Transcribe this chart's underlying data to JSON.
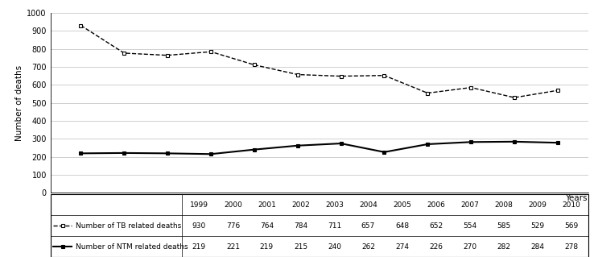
{
  "years": [
    1999,
    2000,
    2001,
    2002,
    2003,
    2004,
    2005,
    2006,
    2007,
    2008,
    2009,
    2010
  ],
  "tb_deaths": [
    930,
    776,
    764,
    784,
    711,
    657,
    648,
    652,
    554,
    585,
    529,
    569
  ],
  "ntm_deaths": [
    219,
    221,
    219,
    215,
    240,
    262,
    274,
    226,
    270,
    282,
    284,
    278
  ],
  "ylabel": "Number of deaths",
  "xlabel": "Years",
  "ylim": [
    0,
    1000
  ],
  "yticks": [
    0,
    100,
    200,
    300,
    400,
    500,
    600,
    700,
    800,
    900,
    1000
  ],
  "tb_label": "Number of TB related deaths",
  "ntm_label": "Number of NTM related deaths",
  "grid_color": "#c8c8c8"
}
